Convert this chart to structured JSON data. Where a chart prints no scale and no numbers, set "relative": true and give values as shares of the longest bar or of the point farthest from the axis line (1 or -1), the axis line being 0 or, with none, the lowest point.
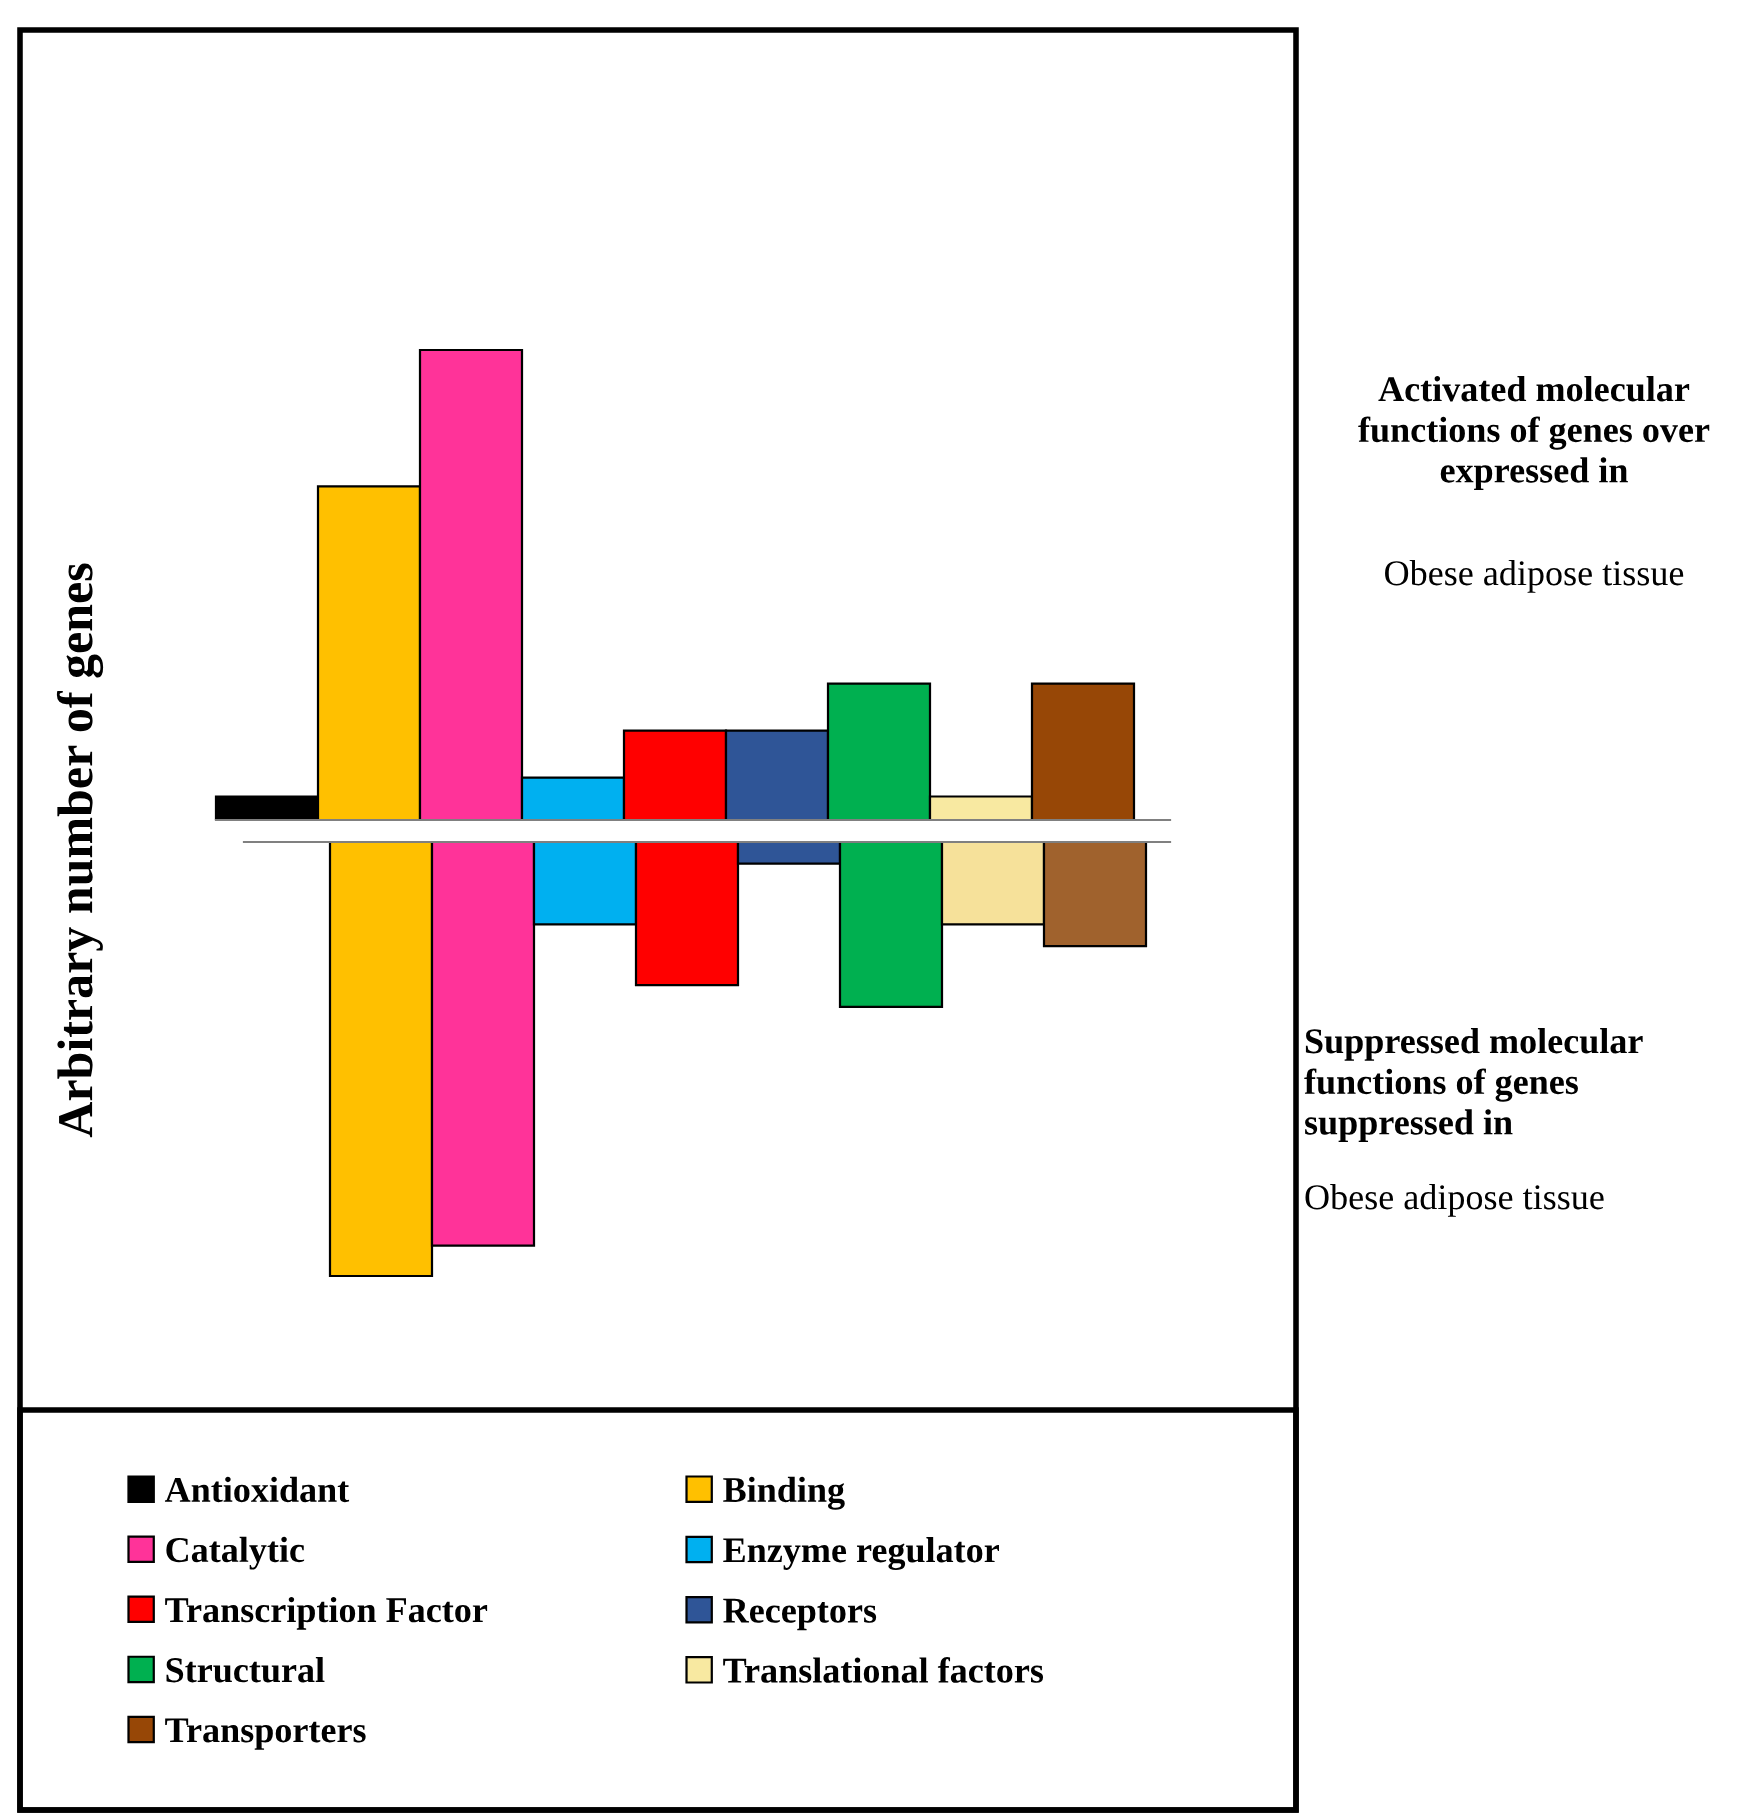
{
  "chart_data": [
    {
      "type": "bar",
      "relative": true,
      "categories": [
        null
      ],
      "ylabel": "Arbitrary number of genes",
      "legend": "bottom",
      "grid": false,
      "annotations": [
        "Activated molecular functions of genes over expressed in",
        "Obese adipose tissue"
      ],
      "series": [
        {
          "name": "Antioxidant",
          "color": "#000000",
          "values": [
            0.05
          ]
        },
        {
          "name": "Binding",
          "color": "#ffc000",
          "values": [
            0.71
          ]
        },
        {
          "name": "Catalytic",
          "color": "#ff3399",
          "values": [
            1
          ]
        },
        {
          "name": "Enzyme regulator",
          "color": "#00b0f0",
          "values": [
            0.09
          ]
        },
        {
          "name": "Transcription Factor",
          "color": "#ff0000",
          "values": [
            0.19
          ]
        },
        {
          "name": "Receptors",
          "color": "#2f5597",
          "values": [
            0.19
          ]
        },
        {
          "name": "Structural",
          "color": "#00b050",
          "values": [
            0.29
          ]
        },
        {
          "name": "Translational factors",
          "color": "#f8e9a1",
          "values": [
            0.05
          ]
        },
        {
          "name": "Transporters",
          "color": "#974706",
          "values": [
            0.29
          ]
        }
      ]
    },
    {
      "type": "bar",
      "relative": true,
      "categories": [
        null
      ],
      "grid": false,
      "annotations": [
        "Suppressed molecular functions of genes suppressed in",
        "Obese adipose tissue"
      ],
      "series": [
        {
          "values": [
            null
          ]
        },
        {
          "color": "#ffc000",
          "values": [
            -1
          ]
        },
        {
          "color": "#ff3399",
          "values": [
            -0.93
          ]
        },
        {
          "color": "#00b0f0",
          "values": [
            -0.19
          ]
        },
        {
          "color": "#ff0000",
          "values": [
            -0.33
          ]
        },
        {
          "color": "#2f5597",
          "values": [
            -0.05
          ]
        },
        {
          "color": "#00b050",
          "values": [
            -0.38
          ]
        },
        {
          "color": "#f6e19a",
          "values": [
            -0.19
          ]
        },
        {
          "color": "#a0622d",
          "values": [
            -0.24
          ]
        }
      ]
    }
  ]
}
